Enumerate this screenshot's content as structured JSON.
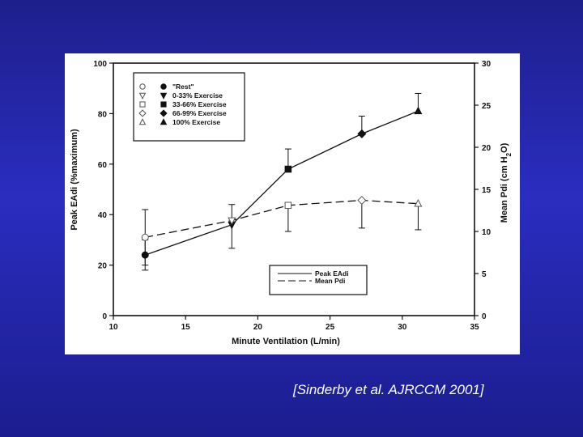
{
  "citation": "[Sinderby et al. AJRCCM 2001]",
  "colors": {
    "background": "#2326a8",
    "figure": "#ffffff",
    "ink": "#111111"
  },
  "chart_data": {
    "type": "line",
    "title": "",
    "xlabel": "Minute Ventilation (L/min)",
    "ylabel": "Peak EAdi (%maximum)",
    "ylabel2": "Mean Pdi (cm H2O)",
    "ylabel2_parts": {
      "main": "Mean Pdi (cm H",
      "sub": "2",
      "tail": "O)"
    },
    "xlim": [
      10,
      35
    ],
    "ylim": [
      0,
      100
    ],
    "ylim2": [
      0,
      30
    ],
    "xticks": [
      "10",
      "15",
      "20",
      "25",
      "30",
      "35"
    ],
    "yticks": [
      "0",
      "20",
      "40",
      "60",
      "80",
      "100"
    ],
    "yticks2": [
      "0",
      "5",
      "10",
      "15",
      "20",
      "25",
      "30"
    ],
    "grid": false,
    "series": [
      {
        "name": "Peak EAdi",
        "axis": "left",
        "line_style": "solid",
        "points": [
          {
            "x": 12.2,
            "y": 24,
            "err": 6,
            "marker": "circle-filled"
          },
          {
            "x": 18.2,
            "y": 36,
            "err": 8,
            "marker": "triangle-down-filled"
          },
          {
            "x": 22.1,
            "y": 58,
            "err": 8,
            "marker": "square-filled"
          },
          {
            "x": 27.2,
            "y": 72,
            "err": 7,
            "marker": "diamond-filled"
          },
          {
            "x": 31.1,
            "y": 81,
            "err": 7,
            "marker": "triangle-up-filled"
          }
        ]
      },
      {
        "name": "Mean Pdi",
        "axis": "right",
        "line_style": "dashed",
        "points": [
          {
            "x": 12.2,
            "y": 9.3,
            "err": 3.3,
            "marker": "circle-open"
          },
          {
            "x": 18.2,
            "y": 11.3,
            "err": 3.3,
            "marker": "triangle-down-open"
          },
          {
            "x": 22.1,
            "y": 13.1,
            "err": 3.1,
            "marker": "square-open"
          },
          {
            "x": 27.2,
            "y": 13.7,
            "err": 3.3,
            "marker": "diamond-open"
          },
          {
            "x": 31.1,
            "y": 13.3,
            "err": 3.1,
            "marker": "triangle-up-open"
          }
        ]
      }
    ],
    "marker_legend": {
      "placement": "top-left",
      "entries": [
        {
          "label": "\"Rest\"",
          "open": "circle-open",
          "filled": "circle-filled"
        },
        {
          "label": "0-33% Exercise",
          "open": "triangle-down-open",
          "filled": "triangle-down-filled"
        },
        {
          "label": "33-66% Exercise",
          "open": "square-open",
          "filled": "square-filled"
        },
        {
          "label": "66-99% Exercise",
          "open": "diamond-open",
          "filled": "diamond-filled"
        },
        {
          "label": "100% Exercise",
          "open": "triangle-up-open",
          "filled": "triangle-up-filled"
        }
      ]
    },
    "line_legend": {
      "placement": "bottom-right",
      "entries": [
        {
          "label": "Peak EAdi",
          "line_style": "solid"
        },
        {
          "label": "Mean Pdi",
          "line_style": "dashed"
        }
      ]
    }
  }
}
